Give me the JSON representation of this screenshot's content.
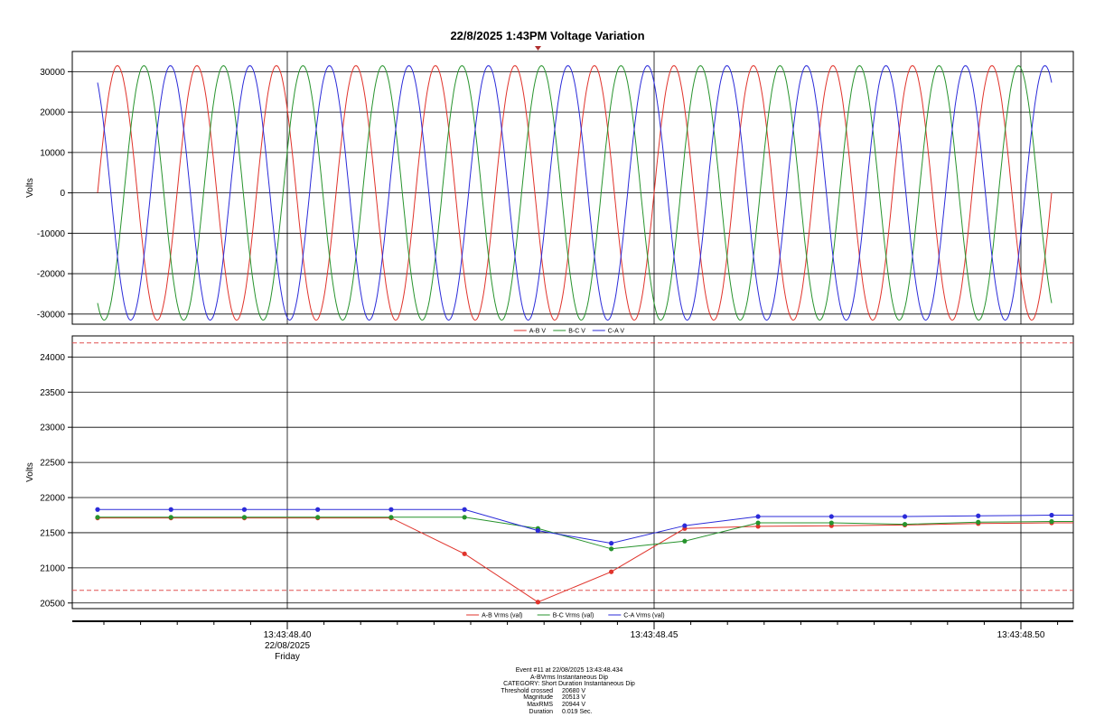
{
  "title": "22/8/2025 1:43PM Voltage Variation",
  "colors": {
    "ab": "#e0332b",
    "bc": "#27932d",
    "ca": "#2b2bd9",
    "threshold": "#e05050",
    "grid": "#000000"
  },
  "chart_data": [
    {
      "type": "line",
      "ylabel": "Volts",
      "ylim": [
        -32500,
        35000
      ],
      "yticks": [
        -30000,
        -20000,
        -10000,
        0,
        10000,
        20000,
        30000
      ],
      "ytick_labels": [
        "-30000",
        "-20000",
        "-10000",
        "0",
        "10000",
        "20000",
        "30000"
      ],
      "waveform": {
        "amplitude": 31500,
        "cycles": 12,
        "phase_shift_deg": 120
      },
      "series": [
        {
          "name": "A-B V",
          "color": "#e0332b"
        },
        {
          "name": "B-C V",
          "color": "#27932d"
        },
        {
          "name": "C-A V",
          "color": "#2b2bd9"
        }
      ]
    },
    {
      "type": "line",
      "ylabel": "Volts",
      "ylim": [
        20420,
        24300
      ],
      "yticks": [
        20500,
        21000,
        21500,
        22000,
        22500,
        23000,
        23500,
        24000
      ],
      "ytick_labels": [
        "20500",
        "21000",
        "21500",
        "22000",
        "22500",
        "23000",
        "23500",
        "24000"
      ],
      "thresholds": [
        24200,
        20680
      ],
      "series": [
        {
          "name": "A-B Vrms (val)",
          "color": "#e0332b",
          "values": [
            21710,
            21710,
            21710,
            21710,
            21710,
            21200,
            20513,
            20944,
            21560,
            21590,
            21600,
            21610,
            21630,
            21640
          ]
        },
        {
          "name": "B-C Vrms (val)",
          "color": "#27932d",
          "values": [
            21720,
            21720,
            21720,
            21720,
            21720,
            21720,
            21560,
            21270,
            21380,
            21640,
            21640,
            21620,
            21650,
            21660
          ]
        },
        {
          "name": "C-A Vrms (val)",
          "color": "#2b2bd9",
          "values": [
            21830,
            21830,
            21830,
            21830,
            21830,
            21830,
            21530,
            21350,
            21600,
            21730,
            21730,
            21730,
            21740,
            21750
          ]
        }
      ]
    }
  ],
  "time_axis": {
    "labels": [
      {
        "time": "13:43:48.40",
        "date": "22/08/2025",
        "day": "Friday"
      },
      {
        "time": "13:43:48.45",
        "date": "",
        "day": ""
      },
      {
        "time": "13:43:48.50",
        "date": "",
        "day": ""
      }
    ]
  },
  "event": {
    "header": "Event #11 at 22/08/2025 13:43:48.434",
    "type": "A-BVrms Instantaneous Dip",
    "category": "CATEGORY: Short Duration Instantaneous Dip",
    "rows": [
      {
        "key": "Threshold crossed",
        "value": "20680 V"
      },
      {
        "key": "Magnitude",
        "value": "20513 V"
      },
      {
        "key": "MaxRMS",
        "value": "20944 V"
      },
      {
        "key": "Duration",
        "value": "0.019 Sec."
      }
    ]
  }
}
